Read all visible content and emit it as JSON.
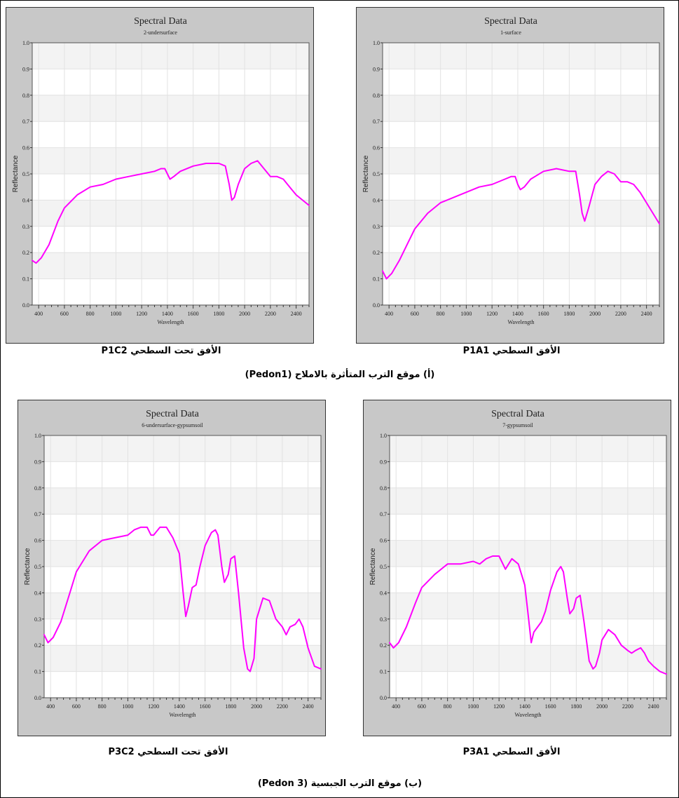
{
  "chart_data": [
    {
      "type": "line",
      "title": "Spectral Data",
      "subtitle": "2-undersurface",
      "xlabel": "Wavelength",
      "ylabel": "Reflectance",
      "xlim": [
        350,
        2500
      ],
      "ylim": [
        0,
        1.0
      ],
      "xticks": [
        400,
        600,
        800,
        1000,
        1200,
        1400,
        1600,
        1800,
        2000,
        2200,
        2400
      ],
      "yticks": [
        0.0,
        0.1,
        0.2,
        0.3,
        0.4,
        0.5,
        0.6,
        0.7,
        0.8,
        0.9,
        1.0
      ],
      "grid": true,
      "line_color": "#ff00ff",
      "series": [
        {
          "x": [
            350,
            380,
            420,
            480,
            550,
            600,
            700,
            800,
            900,
            1000,
            1100,
            1200,
            1300,
            1350,
            1380,
            1400,
            1420,
            1450,
            1500,
            1600,
            1700,
            1800,
            1850,
            1880,
            1900,
            1920,
            1950,
            2000,
            2050,
            2100,
            2150,
            2200,
            2250,
            2300,
            2350,
            2400,
            2450,
            2500
          ],
          "y": [
            0.17,
            0.16,
            0.18,
            0.23,
            0.32,
            0.37,
            0.42,
            0.45,
            0.46,
            0.48,
            0.49,
            0.5,
            0.51,
            0.52,
            0.52,
            0.5,
            0.48,
            0.49,
            0.51,
            0.53,
            0.54,
            0.54,
            0.53,
            0.46,
            0.4,
            0.41,
            0.46,
            0.52,
            0.54,
            0.55,
            0.52,
            0.49,
            0.49,
            0.48,
            0.45,
            0.42,
            0.4,
            0.38
          ]
        }
      ]
    },
    {
      "type": "line",
      "title": "Spectral Data",
      "subtitle": "1-surface",
      "xlabel": "Wavelength",
      "ylabel": "Reflectance",
      "xlim": [
        350,
        2500
      ],
      "ylim": [
        0,
        1.0
      ],
      "xticks": [
        400,
        600,
        800,
        1000,
        1200,
        1400,
        1600,
        1800,
        2000,
        2200,
        2400
      ],
      "yticks": [
        0.0,
        0.1,
        0.2,
        0.3,
        0.4,
        0.5,
        0.6,
        0.7,
        0.8,
        0.9,
        1.0
      ],
      "grid": true,
      "line_color": "#ff00ff",
      "series": [
        {
          "x": [
            350,
            380,
            420,
            480,
            550,
            600,
            700,
            800,
            900,
            1000,
            1100,
            1200,
            1300,
            1350,
            1380,
            1400,
            1420,
            1450,
            1500,
            1600,
            1700,
            1800,
            1850,
            1880,
            1900,
            1920,
            1950,
            2000,
            2050,
            2100,
            2150,
            2200,
            2250,
            2300,
            2350,
            2400,
            2450,
            2500
          ],
          "y": [
            0.13,
            0.1,
            0.12,
            0.17,
            0.24,
            0.29,
            0.35,
            0.39,
            0.41,
            0.43,
            0.45,
            0.46,
            0.48,
            0.49,
            0.49,
            0.46,
            0.44,
            0.45,
            0.48,
            0.51,
            0.52,
            0.51,
            0.51,
            0.42,
            0.35,
            0.32,
            0.37,
            0.46,
            0.49,
            0.51,
            0.5,
            0.47,
            0.47,
            0.46,
            0.43,
            0.39,
            0.35,
            0.31
          ]
        }
      ]
    },
    {
      "type": "line",
      "title": "Spectral Data",
      "subtitle": "6-undersurface-gypsumsoil",
      "xlabel": "Wavelength",
      "ylabel": "Reflectance",
      "xlim": [
        350,
        2500
      ],
      "ylim": [
        0,
        1.0
      ],
      "xticks": [
        400,
        600,
        800,
        1000,
        1200,
        1400,
        1600,
        1800,
        2000,
        2200,
        2400
      ],
      "yticks": [
        0.0,
        0.1,
        0.2,
        0.3,
        0.4,
        0.5,
        0.6,
        0.7,
        0.8,
        0.9,
        1.0
      ],
      "grid": true,
      "line_color": "#ff00ff",
      "series": [
        {
          "x": [
            350,
            380,
            420,
            480,
            550,
            600,
            700,
            800,
            900,
            1000,
            1050,
            1100,
            1150,
            1180,
            1200,
            1250,
            1300,
            1350,
            1400,
            1430,
            1450,
            1470,
            1500,
            1530,
            1560,
            1600,
            1650,
            1680,
            1700,
            1730,
            1750,
            1780,
            1800,
            1830,
            1860,
            1900,
            1930,
            1950,
            1980,
            2000,
            2050,
            2100,
            2150,
            2200,
            2230,
            2260,
            2300,
            2330,
            2360,
            2400,
            2450,
            2500
          ],
          "y": [
            0.24,
            0.21,
            0.23,
            0.29,
            0.4,
            0.48,
            0.56,
            0.6,
            0.61,
            0.62,
            0.64,
            0.65,
            0.65,
            0.62,
            0.62,
            0.65,
            0.65,
            0.61,
            0.55,
            0.4,
            0.31,
            0.35,
            0.42,
            0.43,
            0.5,
            0.58,
            0.63,
            0.64,
            0.62,
            0.5,
            0.44,
            0.47,
            0.53,
            0.54,
            0.4,
            0.19,
            0.11,
            0.1,
            0.15,
            0.3,
            0.38,
            0.37,
            0.3,
            0.27,
            0.24,
            0.27,
            0.28,
            0.3,
            0.27,
            0.19,
            0.12,
            0.11
          ]
        }
      ]
    },
    {
      "type": "line",
      "title": "Spectral Data",
      "subtitle": "7-gypsumsoil",
      "xlabel": "Wavelength",
      "ylabel": "Reflectance",
      "xlim": [
        350,
        2500
      ],
      "ylim": [
        0,
        1.0
      ],
      "xticks": [
        400,
        600,
        800,
        1000,
        1200,
        1400,
        1600,
        1800,
        2000,
        2200,
        2400
      ],
      "yticks": [
        0.0,
        0.1,
        0.2,
        0.3,
        0.4,
        0.5,
        0.6,
        0.7,
        0.8,
        0.9,
        1.0
      ],
      "grid": true,
      "line_color": "#ff00ff",
      "series": [
        {
          "x": [
            350,
            380,
            420,
            480,
            550,
            600,
            700,
            800,
            900,
            1000,
            1050,
            1100,
            1150,
            1180,
            1200,
            1250,
            1300,
            1350,
            1400,
            1430,
            1450,
            1470,
            1500,
            1530,
            1560,
            1600,
            1650,
            1680,
            1700,
            1730,
            1750,
            1780,
            1800,
            1830,
            1860,
            1900,
            1930,
            1950,
            1980,
            2000,
            2050,
            2100,
            2150,
            2200,
            2230,
            2260,
            2300,
            2330,
            2360,
            2400,
            2450,
            2500
          ],
          "y": [
            0.21,
            0.19,
            0.21,
            0.27,
            0.36,
            0.42,
            0.47,
            0.51,
            0.51,
            0.52,
            0.51,
            0.53,
            0.54,
            0.54,
            0.54,
            0.49,
            0.53,
            0.51,
            0.43,
            0.3,
            0.21,
            0.25,
            0.27,
            0.29,
            0.33,
            0.41,
            0.48,
            0.5,
            0.48,
            0.38,
            0.32,
            0.34,
            0.38,
            0.39,
            0.29,
            0.14,
            0.11,
            0.12,
            0.17,
            0.22,
            0.26,
            0.24,
            0.2,
            0.18,
            0.17,
            0.18,
            0.19,
            0.17,
            0.14,
            0.12,
            0.1,
            0.09
          ]
        }
      ]
    }
  ],
  "captions": {
    "c1": "الأفق تحت السطحي P1C2",
    "c2": "الأفق السطحي P1A1",
    "c3": "الأفق تحت السطحي P3C2",
    "c4": "الأفق السطحي P3A1",
    "group_a": "(أ)   موقع الترب المتأثرة بالاملاح (Pedon1)",
    "group_b": "(ب)  موقع الترب الجبسية (Pedon 3)"
  }
}
